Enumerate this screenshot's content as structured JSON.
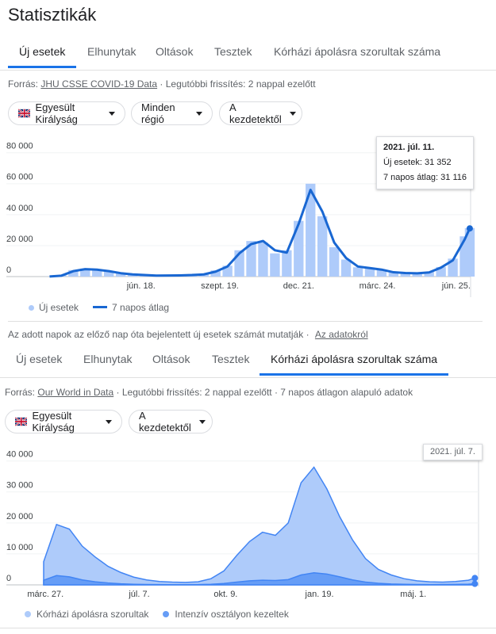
{
  "title": "Statisztikák",
  "sections": [
    {
      "tabs": [
        "Új esetek",
        "Elhunytak",
        "Oltások",
        "Tesztek",
        "Kórházi ápolásra szorultak száma"
      ],
      "active_tab": 0,
      "source_label": "Forrás:",
      "source_link": "JHU CSSE COVID-19 Data",
      "source_note": "· Legutóbbi frissítés: 2 nappal ezelőtt",
      "filters": [
        "Egyesült Királyság",
        "Minden régió",
        "A kezdetektől"
      ],
      "footnote": "Az adott napok az előző nap óta bejelentett új esetek számát mutatják",
      "footnote_sep": "·",
      "footnote_link": "Az adatokról"
    },
    {
      "tabs": [
        "Új esetek",
        "Elhunytak",
        "Oltások",
        "Tesztek",
        "Kórházi ápolásra szorultak száma"
      ],
      "active_tab": 4,
      "source_label": "Forrás:",
      "source_link": "Our World in Data",
      "source_note": "· Legutóbbi frissítés: 2 nappal ezelőtt · 7 napos átlagon alapuló adatok",
      "filters": [
        "Egyesült Királyság",
        "A kezdetektől"
      ]
    }
  ],
  "chart_data": [
    {
      "type": "line",
      "x": [
        "2020-03-02",
        "2020-03-16",
        "2020-03-30",
        "2020-04-13",
        "2020-04-27",
        "2020-05-11",
        "2020-05-25",
        "2020-06-08",
        "2020-06-22",
        "2020-07-06",
        "2020-07-20",
        "2020-08-03",
        "2020-08-17",
        "2020-08-31",
        "2020-09-14",
        "2020-09-28",
        "2020-10-12",
        "2020-10-26",
        "2020-11-09",
        "2020-11-23",
        "2020-12-07",
        "2020-12-21",
        "2021-01-04",
        "2021-01-18",
        "2021-02-01",
        "2021-02-15",
        "2021-03-01",
        "2021-03-15",
        "2021-03-29",
        "2021-04-12",
        "2021-04-26",
        "2021-05-10",
        "2021-05-24",
        "2021-06-07",
        "2021-06-21",
        "2021-07-05",
        "2021-07-11"
      ],
      "series": [
        {
          "name": "Új esetek",
          "type": "bar",
          "color": "#aecbfa",
          "values": [
            60,
            900,
            4200,
            5200,
            4900,
            3300,
            2100,
            1500,
            900,
            700,
            800,
            1000,
            1100,
            1800,
            4000,
            7000,
            17000,
            23000,
            22000,
            15000,
            17000,
            36000,
            60000,
            39000,
            19000,
            11000,
            6000,
            5800,
            4200,
            2500,
            2000,
            2400,
            3100,
            6200,
            11600,
            26000,
            31352
          ]
        },
        {
          "name": "7 napos átlag",
          "type": "line",
          "color": "#1967d2",
          "values": [
            50,
            600,
            3500,
            4800,
            4500,
            3500,
            2200,
            1400,
            1000,
            650,
            700,
            800,
            1000,
            1400,
            3200,
            6500,
            15000,
            21000,
            23000,
            17000,
            15500,
            34000,
            56000,
            42000,
            22000,
            12000,
            6500,
            5500,
            4500,
            2800,
            2300,
            2100,
            2700,
            5800,
            10500,
            24000,
            31116
          ]
        }
      ],
      "xlim": [
        "2020-02-24",
        "2021-07-12"
      ],
      "xticks": [
        {
          "value": "2020-06-18",
          "label": "jún. 18."
        },
        {
          "value": "2020-09-19",
          "label": "szept. 19."
        },
        {
          "value": "2020-12-21",
          "label": "dec. 21."
        },
        {
          "value": "2021-03-24",
          "label": "márc. 24."
        },
        {
          "value": "2021-06-25",
          "label": "jún. 25."
        }
      ],
      "ylim": [
        0,
        85000
      ],
      "yticks": [
        0,
        {
          "value": 20000,
          "label": "20 000"
        },
        {
          "value": 40000,
          "label": "40 000"
        },
        {
          "value": 60000,
          "label": "60 000"
        },
        {
          "value": 80000,
          "label": "80 000"
        }
      ],
      "tooltip": {
        "title": "2021. júl. 11.",
        "lines": [
          "Új esetek: 31 352",
          "7 napos átlag: 31 116"
        ]
      }
    },
    {
      "type": "area",
      "x": [
        "2020-03-25",
        "2020-04-08",
        "2020-04-22",
        "2020-05-06",
        "2020-05-20",
        "2020-06-03",
        "2020-06-17",
        "2020-07-01",
        "2020-07-15",
        "2020-07-29",
        "2020-08-12",
        "2020-08-26",
        "2020-09-09",
        "2020-09-23",
        "2020-10-07",
        "2020-10-21",
        "2020-11-04",
        "2020-11-18",
        "2020-12-02",
        "2020-12-16",
        "2020-12-30",
        "2021-01-13",
        "2021-01-27",
        "2021-02-10",
        "2021-02-24",
        "2021-03-10",
        "2021-03-24",
        "2021-04-07",
        "2021-04-21",
        "2021-05-05",
        "2021-05-19",
        "2021-06-02",
        "2021-06-16",
        "2021-06-30",
        "2021-07-07"
      ],
      "series": [
        {
          "name": "Kórházi ápolásra szorultak",
          "color": "#aecbfa",
          "stroke": "#4285f4",
          "values": [
            7500,
            19500,
            18000,
            12500,
            9000,
            6000,
            4000,
            2500,
            1600,
            1100,
            900,
            800,
            1000,
            2000,
            4500,
            9500,
            14000,
            17000,
            16000,
            20000,
            33000,
            38000,
            31000,
            22000,
            14500,
            8500,
            5000,
            3200,
            2000,
            1300,
            1000,
            900,
            1100,
            1500,
            2200
          ]
        },
        {
          "name": "Intenzív osztályon kezeltek",
          "color": "#669df6",
          "stroke": "#4285f4",
          "values": [
            1500,
            3000,
            2600,
            1600,
            1000,
            600,
            350,
            200,
            120,
            80,
            70,
            70,
            90,
            200,
            450,
            900,
            1300,
            1500,
            1400,
            1700,
            3200,
            3900,
            3500,
            2600,
            1600,
            900,
            500,
            300,
            200,
            130,
            110,
            120,
            150,
            230,
            350
          ]
        }
      ],
      "xlim": [
        "2020-03-25",
        "2021-07-11"
      ],
      "xticks": [
        {
          "value": "2020-03-27",
          "label": "márc. 27."
        },
        {
          "value": "2020-07-07",
          "label": "júl. 7."
        },
        {
          "value": "2020-10-09",
          "label": "okt. 9."
        },
        {
          "value": "2021-01-19",
          "label": "jan. 19."
        },
        {
          "value": "2021-05-01",
          "label": "máj. 1."
        }
      ],
      "ylim": [
        0,
        43000
      ],
      "yticks": [
        0,
        {
          "value": 10000,
          "label": "10 000"
        },
        {
          "value": 20000,
          "label": "20 000"
        },
        {
          "value": 30000,
          "label": "30 000"
        },
        {
          "value": 40000,
          "label": "40 000"
        }
      ],
      "tooltip": {
        "title": "2021. júl. 7."
      }
    }
  ]
}
